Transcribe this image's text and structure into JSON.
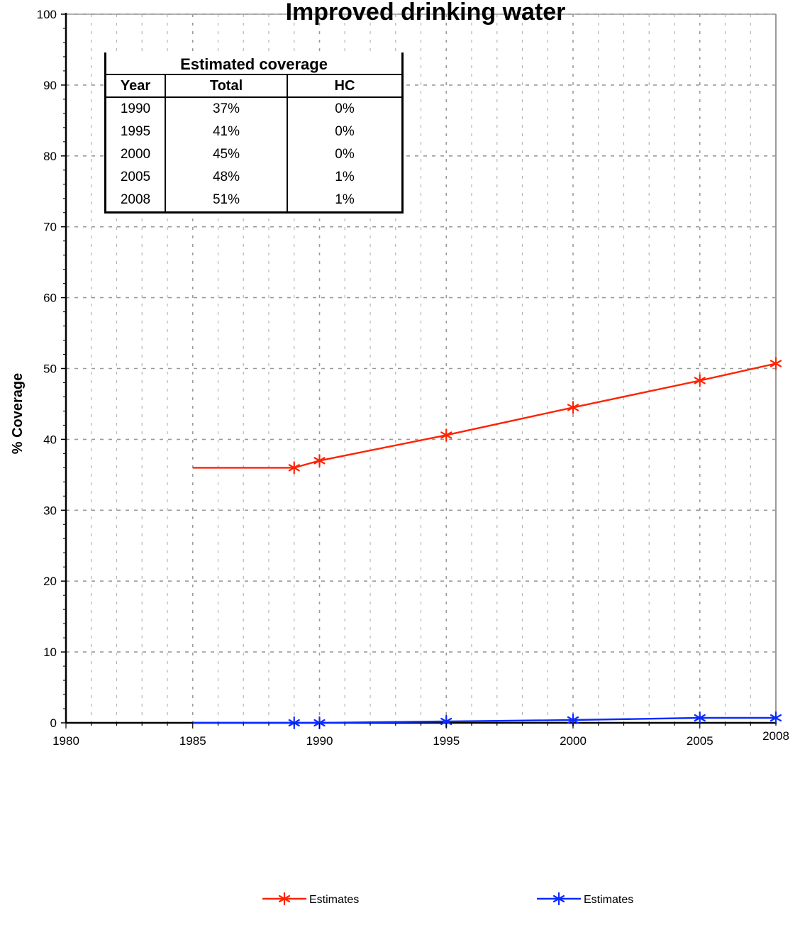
{
  "chart_data": {
    "type": "line",
    "title": "Improved drinking water",
    "xlabel": "",
    "ylabel": "% Coverage",
    "xlim": [
      1980,
      2008
    ],
    "ylim": [
      0,
      100
    ],
    "x_ticks": [
      1980,
      1985,
      1990,
      1995,
      2000,
      2005,
      2008
    ],
    "y_ticks": [
      0,
      10,
      20,
      30,
      40,
      50,
      60,
      70,
      80,
      90,
      100
    ],
    "grid": true,
    "legend_position": "bottom",
    "series": [
      {
        "name": "Estimates",
        "color": "#ff2200",
        "marker": "asterisk",
        "x": [
          1985,
          1989,
          1990,
          1995,
          2000,
          2005,
          2008
        ],
        "y": [
          36,
          36,
          37,
          40.6,
          44.5,
          48.3,
          50.7
        ],
        "marker_mask": [
          false,
          true,
          true,
          true,
          true,
          true,
          true
        ]
      },
      {
        "name": "Estimates",
        "color": "#0a2bff",
        "marker": "asterisk",
        "x": [
          1985,
          1989,
          1990,
          1995,
          2000,
          2005,
          2008
        ],
        "y": [
          0,
          0,
          0,
          0.2,
          0.4,
          0.7,
          0.7
        ],
        "marker_mask": [
          false,
          true,
          true,
          true,
          true,
          true,
          true
        ]
      }
    ]
  },
  "table": {
    "title": "Estimated coverage",
    "headers": [
      "Year",
      "Total",
      "HC"
    ],
    "rows": [
      [
        "1990",
        "37%",
        "0%"
      ],
      [
        "1995",
        "41%",
        "0%"
      ],
      [
        "2000",
        "45%",
        "0%"
      ],
      [
        "2005",
        "48%",
        "1%"
      ],
      [
        "2008",
        "51%",
        "1%"
      ]
    ]
  }
}
